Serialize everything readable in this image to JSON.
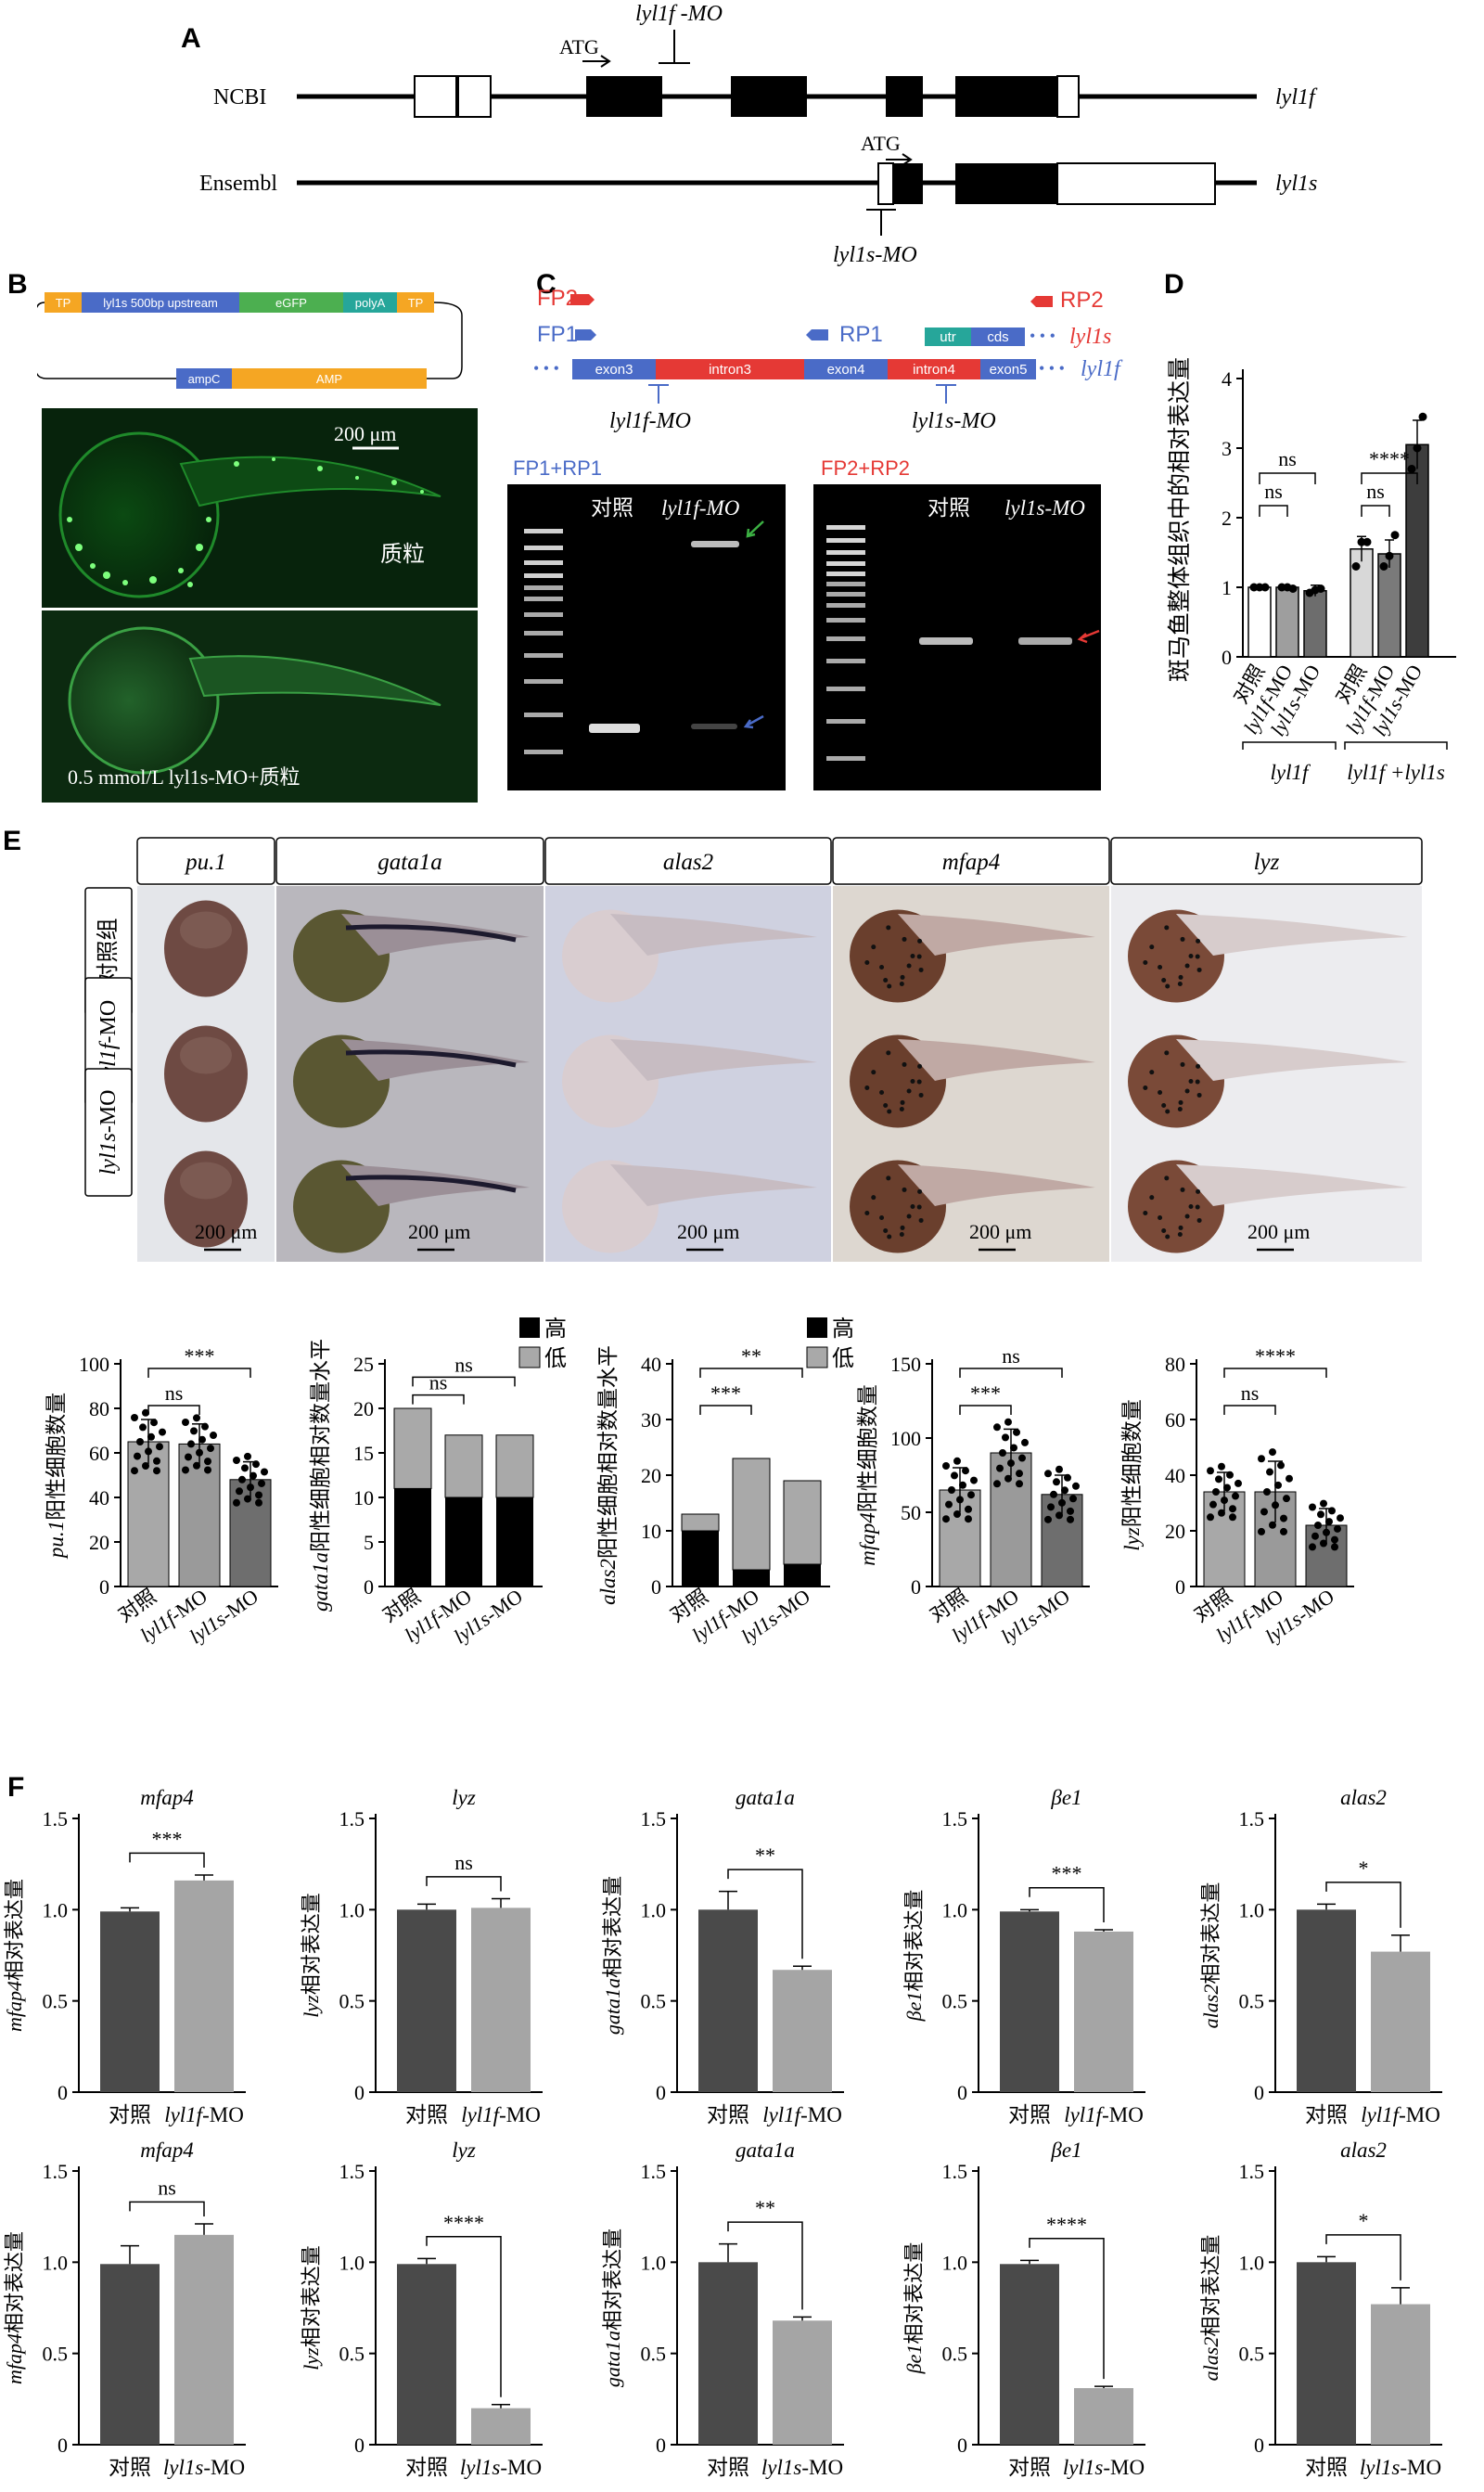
{
  "panelA": {
    "label": "A",
    "row1_name": "NCBI",
    "row2_name": "Ensembl",
    "row1_gene": "lyl1f",
    "row2_gene": "lyl1s",
    "atg1": "ATG",
    "atg2": "ATG",
    "mo1": "lyl1f -MO",
    "mo2": "lyl1s-MO"
  },
  "panelB": {
    "label": "B",
    "plasmid_segments": [
      "TP",
      "lyl1s 500bp upstream",
      "eGFP",
      "polyA",
      "TP"
    ],
    "plasmid_lower": [
      "ampC",
      "AMP"
    ],
    "scale": "200 μm",
    "img1_label": "质粒",
    "img2_label": "0.5 mmol/L lyl1s-MO+质粒"
  },
  "panelC": {
    "label": "C",
    "fp2": "FP2",
    "fp1": "FP1",
    "rp1": "RP1",
    "rp2": "RP2",
    "segments": [
      "exon3",
      "intron3",
      "exon4",
      "intron4",
      "exon5"
    ],
    "utr": "utr",
    "cds": "cds",
    "gene_s": "lyl1s",
    "gene_f": "lyl1f",
    "mo_f": "lyl1f-MO",
    "mo_s": "lyl1s-MO",
    "gel1_title": "FP1+RP1",
    "gel2_title": "FP2+RP2",
    "gel1_lanes": [
      "对照",
      "lyl1f-MO"
    ],
    "gel2_lanes": [
      "对照",
      "lyl1s-MO"
    ]
  },
  "panelD": {
    "label": "D",
    "ylabel": "斑马鱼整体组织中的相对表达量",
    "yticks": [
      "0",
      "1",
      "2",
      "3",
      "4"
    ],
    "categories": [
      "对照",
      "lyl1f-MO",
      "lyl1s-MO",
      "对照",
      "lyl1f-MO",
      "lyl1s-MO"
    ],
    "group1": "lyl1f",
    "group2": "lyl1f +lyl1s",
    "sig": [
      "ns",
      "ns",
      "ns",
      "****"
    ]
  },
  "panelE": {
    "label": "E",
    "genes": [
      "pu.1",
      "gata1a",
      "alas2",
      "mfap4",
      "lyz"
    ],
    "rows": [
      "对照组",
      "lyl1f-MO",
      "lyl1s-MO"
    ],
    "scale": "200 μm",
    "legend_high": "高",
    "legend_low": "低",
    "charts": [
      {
        "ylabel": "pu.1阳性细胞数量",
        "yticks": [
          "0",
          "20",
          "40",
          "60",
          "80",
          "100"
        ],
        "sig": [
          "ns",
          "***"
        ]
      },
      {
        "ylabel": "gata1a阳性细胞相对数量水平",
        "yticks": [
          "0",
          "5",
          "10",
          "15",
          "20",
          "25"
        ],
        "sig": [
          "ns",
          "ns"
        ]
      },
      {
        "ylabel": "alas2阳性细胞相对数量水平",
        "yticks": [
          "0",
          "10",
          "20",
          "30",
          "40"
        ],
        "sig": [
          "***",
          "**"
        ]
      },
      {
        "ylabel": "mfap4阳性细胞数量",
        "yticks": [
          "0",
          "50",
          "100",
          "150"
        ],
        "sig": [
          "***",
          "ns"
        ]
      },
      {
        "ylabel": "lyz阳性细胞数量",
        "yticks": [
          "0",
          "20",
          "40",
          "60",
          "80"
        ],
        "sig": [
          "ns",
          "****"
        ]
      }
    ],
    "xcats": [
      "对照",
      "lyl1f-MO",
      "lyl1s-MO"
    ]
  },
  "panelF": {
    "label": "F",
    "yticks": [
      "0",
      "0.5",
      "1.0",
      "1.5"
    ],
    "row1_xcats": [
      "对照",
      "lyl1f-MO"
    ],
    "row2_xcats": [
      "对照",
      "lyl1s-MO"
    ],
    "charts_row1": [
      {
        "title": "mfap4",
        "ylabel": "mfap4相对表达量",
        "sig": "***"
      },
      {
        "title": "lyz",
        "ylabel": "lyz相对表达量",
        "sig": "ns"
      },
      {
        "title": "gata1a",
        "ylabel": "gata1a相对表达量",
        "sig": "**"
      },
      {
        "title": "βe1",
        "ylabel": "βe1相对表达量",
        "sig": "***"
      },
      {
        "title": "alas2",
        "ylabel": "alas2相对表达量",
        "sig": "*"
      }
    ],
    "charts_row2": [
      {
        "title": "mfap4",
        "ylabel": "mfap4相对表达量",
        "sig": "ns"
      },
      {
        "title": "lyz",
        "ylabel": "lyz相对表达量",
        "sig": "****"
      },
      {
        "title": "gata1a",
        "ylabel": "gata1a相对表达量",
        "sig": "**"
      },
      {
        "title": "βe1",
        "ylabel": "βe1相对表达量",
        "sig": "****"
      },
      {
        "title": "alas2",
        "ylabel": "alas2相对表达量",
        "sig": "*"
      }
    ]
  },
  "chart_data": [
    {
      "type": "bar",
      "panel": "D",
      "categories": [
        "对照",
        "lyl1f-MO",
        "lyl1s-MO",
        "对照",
        "lyl1f-MO",
        "lyl1s-MO"
      ],
      "values": [
        1.0,
        1.0,
        0.95,
        1.55,
        1.48,
        3.05
      ],
      "errors": [
        0.02,
        0.02,
        0.08,
        0.18,
        0.2,
        0.35
      ],
      "ylim": [
        0,
        4
      ],
      "ylabel": "斑马鱼整体组织中的相对表达量"
    },
    {
      "type": "bar",
      "panel": "E",
      "ylabel": "pu.1阳性细胞数量",
      "categories": [
        "对照",
        "lyl1f-MO",
        "lyl1s-MO"
      ],
      "values": [
        65,
        64,
        48
      ],
      "errors": [
        10,
        9,
        8
      ],
      "ylim": [
        0,
        100
      ]
    },
    {
      "type": "bar",
      "panel": "E",
      "ylabel": "gata1a阳性细胞相对数量水平",
      "categories": [
        "对照",
        "lyl1f-MO",
        "lyl1s-MO"
      ],
      "series": [
        {
          "name": "高",
          "values": [
            11,
            10,
            10
          ]
        },
        {
          "name": "低",
          "values": [
            9,
            7,
            7
          ]
        }
      ],
      "ylim": [
        0,
        25
      ]
    },
    {
      "type": "bar",
      "panel": "E",
      "ylabel": "alas2阳性细胞相对数量水平",
      "categories": [
        "对照",
        "lyl1f-MO",
        "lyl1s-MO"
      ],
      "series": [
        {
          "name": "高",
          "values": [
            10,
            3,
            4
          ]
        },
        {
          "name": "低",
          "values": [
            3,
            20,
            15
          ]
        }
      ],
      "ylim": [
        0,
        40
      ]
    },
    {
      "type": "bar",
      "panel": "E",
      "ylabel": "mfap4阳性细胞数量",
      "categories": [
        "对照",
        "lyl1f-MO",
        "lyl1s-MO"
      ],
      "values": [
        65,
        90,
        62
      ],
      "errors": [
        15,
        16,
        13
      ],
      "ylim": [
        0,
        150
      ]
    },
    {
      "type": "bar",
      "panel": "E",
      "ylabel": "lyz阳性细胞数量",
      "categories": [
        "对照",
        "lyl1f-MO",
        "lyl1s-MO"
      ],
      "values": [
        34,
        34,
        22
      ],
      "errors": [
        7,
        11,
        6
      ],
      "ylim": [
        0,
        80
      ]
    },
    {
      "type": "bar",
      "panel": "F",
      "title": "mfap4",
      "categories": [
        "对照",
        "lyl1f-MO"
      ],
      "values": [
        0.99,
        1.16
      ],
      "errors": [
        0.02,
        0.03
      ],
      "ylim": [
        0,
        1.5
      ]
    },
    {
      "type": "bar",
      "panel": "F",
      "title": "lyz",
      "categories": [
        "对照",
        "lyl1f-MO"
      ],
      "values": [
        1.0,
        1.01
      ],
      "errors": [
        0.03,
        0.05
      ],
      "ylim": [
        0,
        1.5
      ]
    },
    {
      "type": "bar",
      "panel": "F",
      "title": "gata1a",
      "categories": [
        "对照",
        "lyl1f-MO"
      ],
      "values": [
        1.0,
        0.67
      ],
      "errors": [
        0.1,
        0.02
      ],
      "ylim": [
        0,
        1.5
      ]
    },
    {
      "type": "bar",
      "panel": "F",
      "title": "βe1",
      "categories": [
        "对照",
        "lyl1f-MO"
      ],
      "values": [
        0.99,
        0.88
      ],
      "errors": [
        0.01,
        0.01
      ],
      "ylim": [
        0,
        1.5
      ]
    },
    {
      "type": "bar",
      "panel": "F",
      "title": "alas2",
      "categories": [
        "对照",
        "lyl1f-MO"
      ],
      "values": [
        1.0,
        0.77
      ],
      "errors": [
        0.03,
        0.09
      ],
      "ylim": [
        0,
        1.5
      ]
    },
    {
      "type": "bar",
      "panel": "F",
      "title": "mfap4",
      "categories": [
        "对照",
        "lyl1s-MO"
      ],
      "values": [
        0.99,
        1.15
      ],
      "errors": [
        0.1,
        0.06
      ],
      "ylim": [
        0,
        1.5
      ]
    },
    {
      "type": "bar",
      "panel": "F",
      "title": "lyz",
      "categories": [
        "对照",
        "lyl1s-MO"
      ],
      "values": [
        0.99,
        0.2
      ],
      "errors": [
        0.03,
        0.02
      ],
      "ylim": [
        0,
        1.5
      ]
    },
    {
      "type": "bar",
      "panel": "F",
      "title": "gata1a",
      "categories": [
        "对照",
        "lyl1s-MO"
      ],
      "values": [
        1.0,
        0.68
      ],
      "errors": [
        0.1,
        0.02
      ],
      "ylim": [
        0,
        1.5
      ]
    },
    {
      "type": "bar",
      "panel": "F",
      "title": "βe1",
      "categories": [
        "对照",
        "lyl1s-MO"
      ],
      "values": [
        0.99,
        0.31
      ],
      "errors": [
        0.02,
        0.01
      ],
      "ylim": [
        0,
        1.5
      ]
    },
    {
      "type": "bar",
      "panel": "F",
      "title": "alas2",
      "categories": [
        "对照",
        "lyl1s-MO"
      ],
      "values": [
        1.0,
        0.77
      ],
      "errors": [
        0.03,
        0.09
      ],
      "ylim": [
        0,
        1.5
      ]
    }
  ]
}
